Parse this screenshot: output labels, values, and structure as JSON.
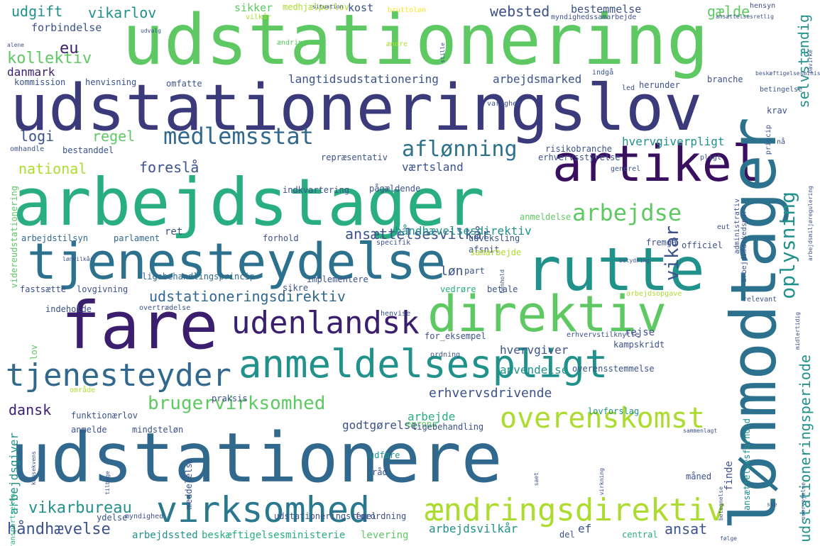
{
  "palette": {
    "dark_purple": "#440154",
    "indigo": "#3b528b",
    "blue": "#2c728e",
    "teal": "#21918c",
    "green": "#28ae80",
    "light_green": "#5ec962",
    "lime": "#addc30",
    "yellow": "#fde725"
  },
  "words": [
    {
      "text": "udstationering",
      "color": "#5ec962"
    },
    {
      "text": "udstationeringslov",
      "color": "#3b3a7a"
    },
    {
      "text": "arbejdstager",
      "color": "#28ae80"
    },
    {
      "text": "artikel",
      "color": "#3b0f60"
    },
    {
      "text": "lønmodtager",
      "color": "#2c728e"
    },
    {
      "text": "rutte",
      "color": "#21918c"
    },
    {
      "text": "tjenesteydelse",
      "color": "#2c728e"
    },
    {
      "text": "fare",
      "color": "#3b1f6e"
    },
    {
      "text": "direktiv",
      "color": "#5ec962"
    },
    {
      "text": "anmeldelsespligt",
      "color": "#21918c"
    },
    {
      "text": "udenlandsk",
      "color": "#3b1f6e"
    },
    {
      "text": "tjenesteyder",
      "color": "#31688e"
    },
    {
      "text": "udstationere",
      "color": "#31688e"
    },
    {
      "text": "virksomhed",
      "color": "#2a788e"
    },
    {
      "text": "ændringsdirektiv",
      "color": "#addc30"
    },
    {
      "text": "overenskomst",
      "color": "#addc30"
    },
    {
      "text": "brugervirksomhed",
      "color": "#5ec962"
    },
    {
      "text": "medlemsstat",
      "color": "#31688e"
    },
    {
      "text": "aflønning",
      "color": "#2c728e"
    },
    {
      "text": "arbejdse",
      "color": "#5ec962"
    },
    {
      "text": "oplysning",
      "color": "#21918c"
    },
    {
      "text": "vikar",
      "color": "#3b528b"
    },
    {
      "text": "udstationeringsperiode",
      "color": "#21918c"
    },
    {
      "text": "selvstændig",
      "color": "#21918c"
    },
    {
      "text": "ansættelsesvilkår",
      "color": "#3b528b"
    },
    {
      "text": "udstationeringsdirektiv",
      "color": "#31688e"
    },
    {
      "text": "erhvervsdrivende",
      "color": "#3b528b"
    },
    {
      "text": "vikarbureau",
      "color": "#21918c"
    },
    {
      "text": "håndhævelse",
      "color": "#3b528b"
    },
    {
      "text": "kollektiv",
      "color": "#5ec962"
    },
    {
      "text": "udgift",
      "color": "#21918c"
    },
    {
      "text": "vikarlov",
      "color": "#21918c"
    },
    {
      "text": "websted",
      "color": "#3b528b"
    },
    {
      "text": "gælde",
      "color": "#5ec962"
    },
    {
      "text": "eu",
      "color": "#3b1f6e"
    },
    {
      "text": "logi",
      "color": "#3b528b"
    },
    {
      "text": "regel",
      "color": "#5ec962"
    },
    {
      "text": "national",
      "color": "#addc30"
    },
    {
      "text": "foreslå",
      "color": "#3b528b"
    },
    {
      "text": "dansk",
      "color": "#3b1f6e"
    },
    {
      "text": "ansat",
      "color": "#3b528b"
    },
    {
      "text": "løn",
      "color": "#3b528b"
    },
    {
      "text": "langtidsudstationering",
      "color": "#3b528b"
    },
    {
      "text": "arbejdsmarked",
      "color": "#3b528b"
    },
    {
      "text": "hvervgiverpligt",
      "color": "#21918c"
    },
    {
      "text": "værtsland",
      "color": "#3b528b"
    },
    {
      "text": "håndhævelsesdirektiv",
      "color": "#21918c"
    },
    {
      "text": "arbejde",
      "color": "#28ae80"
    },
    {
      "text": "godtgørelse",
      "color": "#3b528b"
    },
    {
      "text": "hvervgiver",
      "color": "#3b528b"
    },
    {
      "text": "anvendelse",
      "color": "#21918c"
    },
    {
      "text": "arbejdsvilkår",
      "color": "#21918c"
    },
    {
      "text": "danmark",
      "color": "#3b1f6e"
    },
    {
      "text": "bestemmelse",
      "color": "#3b528b"
    },
    {
      "text": "forbindelse",
      "color": "#3b528b"
    },
    {
      "text": "kost",
      "color": "#3b528b"
    },
    {
      "text": "sikker",
      "color": "#5ec962"
    },
    {
      "text": "repræsentativ",
      "color": "#3b528b"
    },
    {
      "text": "ret",
      "color": "#3b528b"
    },
    {
      "text": "parlament",
      "color": "#31688e"
    },
    {
      "text": "arbejdstilsyn",
      "color": "#31688e"
    },
    {
      "text": "lovgivning",
      "color": "#3b528b"
    },
    {
      "text": "fastsætte",
      "color": "#3b528b"
    },
    {
      "text": "ligebehandlingsprincip",
      "color": "#31688e"
    },
    {
      "text": "implementere",
      "color": "#3b528b"
    },
    {
      "text": "sikre",
      "color": "#3b528b"
    },
    {
      "text": "vedrøre",
      "color": "#28ae80"
    },
    {
      "text": "betale",
      "color": "#3b528b"
    },
    {
      "text": "rejse",
      "color": "#3b528b"
    },
    {
      "text": "kampskridt",
      "color": "#3b528b"
    },
    {
      "text": "overensstemmelse",
      "color": "#3b528b"
    },
    {
      "text": "lovforslag",
      "color": "#21918c"
    },
    {
      "text": "europa",
      "color": "#5ec962"
    },
    {
      "text": "ligebehandling",
      "color": "#3b528b"
    },
    {
      "text": "anmelde",
      "color": "#3b528b"
    },
    {
      "text": "mindsteløn",
      "color": "#3b528b"
    },
    {
      "text": "funktionærlov",
      "color": "#3b528b"
    },
    {
      "text": "arbejdsgiver",
      "color": "#21918c"
    },
    {
      "text": "vejtransportsektor",
      "color": "#28ae80"
    },
    {
      "text": "ydelse",
      "color": "#3b528b"
    },
    {
      "text": "myndighed",
      "color": "#3b528b"
    },
    {
      "text": "arbejdssted",
      "color": "#21918c"
    },
    {
      "text": "beskæftigelsesministerie",
      "color": "#28ae80"
    },
    {
      "text": "levering",
      "color": "#5ec962"
    },
    {
      "text": "udstationeringsregel",
      "color": "#3b528b"
    },
    {
      "text": "forordning",
      "color": "#3b528b"
    },
    {
      "text": "central",
      "color": "#28ae80"
    },
    {
      "text": "del",
      "color": "#3b528b"
    },
    {
      "text": "ef",
      "color": "#3b528b"
    },
    {
      "text": "finde",
      "color": "#3b528b"
    },
    {
      "text": "udføre",
      "color": "#21918c"
    },
    {
      "text": "råd",
      "color": "#3b528b"
    },
    {
      "text": "måned",
      "color": "#3b528b"
    },
    {
      "text": "praksis",
      "color": "#3b528b"
    },
    {
      "text": "område",
      "color": "#addc30"
    },
    {
      "text": "lov",
      "color": "#5ec962"
    },
    {
      "text": "kommission",
      "color": "#3b528b"
    },
    {
      "text": "henvisning",
      "color": "#3b528b"
    },
    {
      "text": "omfatte",
      "color": "#3b528b"
    },
    {
      "text": "bestanddel",
      "color": "#3b528b"
    },
    {
      "text": "omhandle",
      "color": "#3b528b"
    },
    {
      "text": "indkvartering",
      "color": "#3b528b"
    },
    {
      "text": "pågældende",
      "color": "#3b528b"
    },
    {
      "text": "risikobranche",
      "color": "#3b528b"
    },
    {
      "text": "erhvervsstyrelse",
      "color": "#3b528b"
    },
    {
      "text": "afsnit",
      "color": "#3b528b"
    },
    {
      "text": "anmeldelse",
      "color": "#5ec962"
    },
    {
      "text": "fremgå",
      "color": "#3b528b"
    },
    {
      "text": "officiel",
      "color": "#3b528b"
    },
    {
      "text": "udveksling",
      "color": "#3b528b"
    },
    {
      "text": "samarbejde",
      "color": "#addc30"
    },
    {
      "text": "part",
      "color": "#3b528b"
    },
    {
      "text": "forhold",
      "color": "#3b528b"
    },
    {
      "text": "specifik",
      "color": "#3b528b"
    },
    {
      "text": "henvise",
      "color": "#3b528b"
    },
    {
      "text": "overtrædelse",
      "color": "#3b528b"
    },
    {
      "text": "indeholde",
      "color": "#3b528b"
    },
    {
      "text": "for_eksempel",
      "color": "#3b528b"
    },
    {
      "text": "ordning",
      "color": "#3b528b"
    },
    {
      "text": "erhvervstilknytte",
      "color": "#3b528b"
    },
    {
      "text": "relevant",
      "color": "#3b528b"
    },
    {
      "text": "branche",
      "color": "#3b528b"
    },
    {
      "text": "herunder",
      "color": "#3b528b"
    },
    {
      "text": "krav",
      "color": "#3b528b"
    },
    {
      "text": "betingelse",
      "color": "#3b528b"
    },
    {
      "text": "varighed",
      "color": "#3b528b"
    },
    {
      "text": "indgå",
      "color": "#3b528b"
    },
    {
      "text": "led",
      "color": "#3b528b"
    },
    {
      "text": "eut",
      "color": "#3b528b"
    },
    {
      "text": "generel",
      "color": "#3b528b"
    },
    {
      "text": "pligt",
      "color": "#3b528b"
    },
    {
      "text": "nå",
      "color": "#3b528b"
    },
    {
      "text": "princip",
      "color": "#3b528b"
    },
    {
      "text": "administrativ",
      "color": "#3b528b"
    },
    {
      "text": "arbejdsmarkedspart",
      "color": "#3b528b"
    },
    {
      "text": "ansættelsesforhold",
      "color": "#21918c"
    },
    {
      "text": "videreudstationering",
      "color": "#5ec962"
    },
    {
      "text": "medhjælperlov",
      "color": "#addc30"
    },
    {
      "text": "vilkår",
      "color": "#addc30"
    },
    {
      "text": "bruttoløn",
      "color": "#fde725"
    },
    {
      "text": "ændre",
      "color": "#addc30"
    },
    {
      "text": "ændring",
      "color": "#5ec962"
    },
    {
      "text": "myndighedssamarbejde",
      "color": "#3b528b"
    },
    {
      "text": "ansættelsesretlig",
      "color": "#3b528b"
    },
    {
      "text": "beskæftigelsesminister",
      "color": "#3b528b"
    },
    {
      "text": "hensyn",
      "color": "#3b528b"
    },
    {
      "text": "udvalg",
      "color": "#3b528b"
    },
    {
      "text": "alene",
      "color": "#3b528b"
    },
    {
      "text": "stille",
      "color": "#3b528b"
    },
    {
      "text": "situation",
      "color": "#3b528b"
    },
    {
      "text": "arbejdsopgave",
      "color": "#addc30"
    },
    {
      "text": "henhold",
      "color": "#3b528b"
    },
    {
      "text": "betegnelse",
      "color": "#3b528b"
    },
    {
      "text": "konsekvens",
      "color": "#3b528b"
    },
    {
      "text": "saet",
      "color": "#3b528b"
    },
    {
      "text": "følge",
      "color": "#3b528b"
    },
    {
      "text": "tilbage",
      "color": "#3b528b"
    },
    {
      "text": "lønvilkår",
      "color": "#3b528b"
    },
    {
      "text": "meddelelse",
      "color": "#3b528b"
    },
    {
      "text": "virkning",
      "color": "#3b528b"
    },
    {
      "text": "ske",
      "color": "#3b528b"
    },
    {
      "text": "overvejelse",
      "color": "#3b528b"
    },
    {
      "text": "arbejdsmiljøregulering",
      "color": "#3b528b"
    },
    {
      "text": "betydning",
      "color": "#3b528b"
    },
    {
      "text": "midlertidig",
      "color": "#3b528b"
    },
    {
      "text": "påvirke",
      "color": "#3b528b"
    },
    {
      "text": "sammenlagt",
      "color": "#3b528b"
    }
  ]
}
